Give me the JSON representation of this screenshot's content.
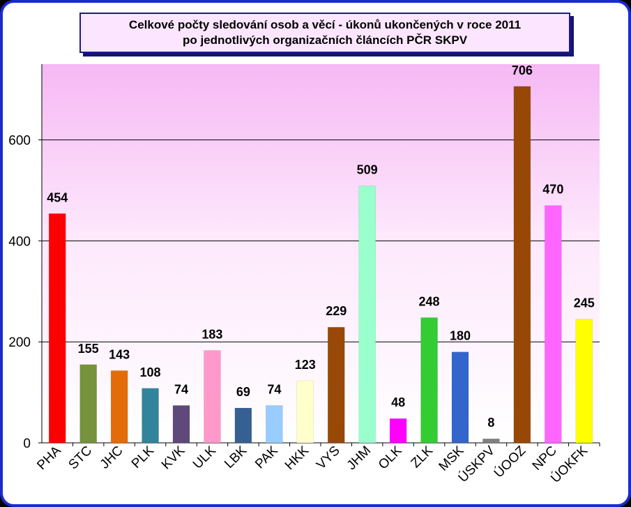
{
  "chart_data": {
    "type": "bar",
    "title": "Celkové počty sledování osob a věcí - úkonů ukončených v roce 2011",
    "subtitle": "po jednotlivých organizačních článcích PČR SKPV",
    "xlabel": "",
    "ylabel": "",
    "ylim": [
      0,
      750
    ],
    "yticks": [
      0,
      200,
      400,
      600
    ],
    "grid": true,
    "legend": "none",
    "categories": [
      "PHA",
      "STC",
      "JHC",
      "PLK",
      "KVK",
      "ULK",
      "LBK",
      "PAK",
      "HKK",
      "VYS",
      "JHM",
      "OLK",
      "ZLK",
      "MSK",
      "ÚSKPV",
      "ÚOOZ",
      "NPC",
      "ÚOKFK"
    ],
    "values": [
      454,
      155,
      143,
      108,
      74,
      183,
      69,
      74,
      123,
      229,
      509,
      48,
      248,
      180,
      8,
      706,
      470,
      245
    ],
    "colors": [
      "#ff0000",
      "#76923c",
      "#e36c09",
      "#31849b",
      "#5f497a",
      "#ff99cc",
      "#366092",
      "#99ccff",
      "#ffffcc",
      "#984807",
      "#99ffcc",
      "#ff00ff",
      "#33cc33",
      "#3366cc",
      "#808080",
      "#974806",
      "#ff66ff",
      "#ffff00"
    ]
  }
}
